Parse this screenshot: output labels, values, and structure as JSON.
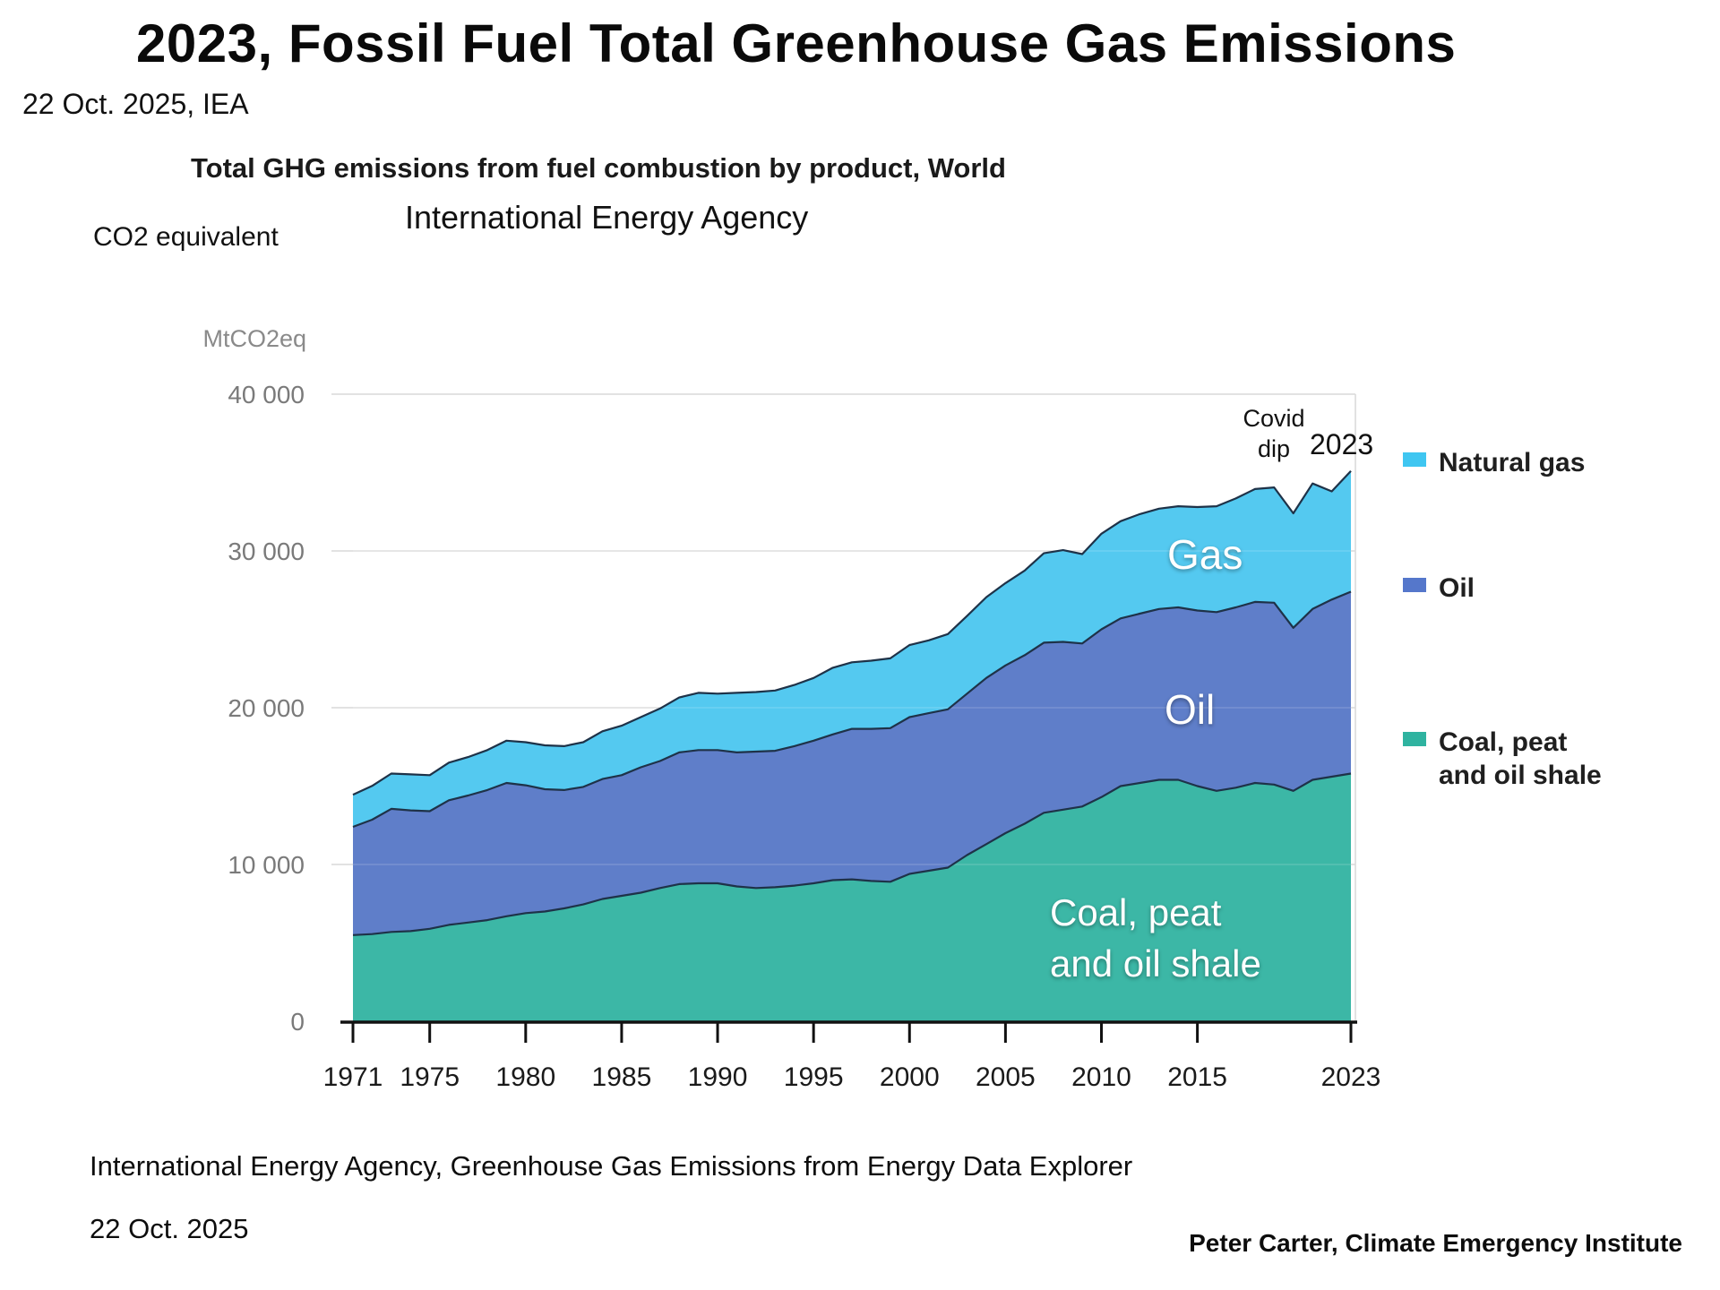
{
  "page": {
    "title": "2023, Fossil Fuel Total Greenhouse Gas Emissions",
    "date_line": "22 Oct. 2025, IEA",
    "footer_source": "International Energy Agency, Greenhouse Gas Emissions from Energy Data Explorer",
    "footer_date": "22 Oct. 2025",
    "credit": "Peter Carter, Climate Emergency Institute"
  },
  "chart": {
    "title": "Total GHG emissions from fuel combustion by product, World",
    "agency": "International Energy Agency",
    "unit_label": "CO2 equivalent",
    "axis_unit": "MtCO2eq",
    "area_labels": {
      "gas": "Gas",
      "oil": "Oil",
      "coal_line1": "Coal, peat",
      "coal_line2": "and oil shale"
    },
    "annotations": {
      "covid_line1": "Covid",
      "covid_line2": "dip",
      "end_year": "2023"
    },
    "legend": [
      {
        "label": "Natural gas",
        "label_line2": "",
        "color": "#3fc6f1"
      },
      {
        "label": "Oil",
        "label_line2": "",
        "color": "#5577cb"
      },
      {
        "label": "Coal, peat",
        "label_line2": "and oil shale",
        "color": "#2fb3a0"
      }
    ],
    "colors": {
      "gas_area": "#54c9f0",
      "oil_area": "#5f7ec9",
      "coal_area": "#3cb7a6",
      "edge_stroke": "#1e3248",
      "gridline": "#d9d9d9",
      "axis": "#111111",
      "y_tick_text": "#7a7a7a",
      "x_tick_text": "#1a1a1a"
    }
  },
  "chart_data": {
    "type": "area",
    "stacked": true,
    "title": "Total GHG emissions from fuel combustion by product, World",
    "ylabel": "MtCO2eq",
    "ylim": [
      0,
      40000
    ],
    "grid": true,
    "legend_position": "right",
    "x": [
      1971,
      1972,
      1973,
      1974,
      1975,
      1976,
      1977,
      1978,
      1979,
      1980,
      1981,
      1982,
      1983,
      1984,
      1985,
      1986,
      1987,
      1988,
      1989,
      1990,
      1991,
      1992,
      1993,
      1994,
      1995,
      1996,
      1997,
      1998,
      1999,
      2000,
      2001,
      2002,
      2003,
      2004,
      2005,
      2006,
      2007,
      2008,
      2009,
      2010,
      2011,
      2012,
      2013,
      2014,
      2015,
      2016,
      2017,
      2018,
      2019,
      2020,
      2021,
      2022,
      2023
    ],
    "series": [
      {
        "name": "Coal, peat and oil shale",
        "values": [
          5500,
          5560,
          5700,
          5750,
          5900,
          6150,
          6300,
          6450,
          6700,
          6900,
          7000,
          7200,
          7450,
          7800,
          8000,
          8200,
          8500,
          8750,
          8800,
          8800,
          8600,
          8500,
          8550,
          8650,
          8800,
          9000,
          9050,
          8950,
          8900,
          9400,
          9600,
          9800,
          10600,
          11300,
          12000,
          12600,
          13300,
          13500,
          13700,
          14300,
          15000,
          15200,
          15400,
          15400,
          15000,
          14700,
          14900,
          15200,
          15100,
          14700,
          15400,
          15600,
          15800
        ]
      },
      {
        "name": "Oil",
        "values": [
          6900,
          7300,
          7850,
          7700,
          7500,
          7950,
          8100,
          8300,
          8500,
          8150,
          7800,
          7550,
          7500,
          7650,
          7700,
          8000,
          8100,
          8400,
          8500,
          8500,
          8550,
          8700,
          8700,
          8900,
          9100,
          9300,
          9600,
          9700,
          9800,
          10000,
          10050,
          10100,
          10300,
          10600,
          10700,
          10750,
          10850,
          10700,
          10400,
          10700,
          10700,
          10800,
          10900,
          11000,
          11200,
          11400,
          11500,
          11550,
          11600,
          10400,
          10900,
          11300,
          11600
        ]
      },
      {
        "name": "Natural gas",
        "values": [
          2050,
          2150,
          2250,
          2300,
          2300,
          2400,
          2450,
          2550,
          2700,
          2750,
          2800,
          2800,
          2850,
          3050,
          3150,
          3200,
          3350,
          3500,
          3650,
          3600,
          3800,
          3800,
          3850,
          3900,
          4000,
          4250,
          4250,
          4350,
          4450,
          4600,
          4650,
          4800,
          4950,
          5150,
          5250,
          5400,
          5700,
          5850,
          5700,
          6100,
          6200,
          6350,
          6400,
          6450,
          6600,
          6750,
          6950,
          7200,
          7350,
          7300,
          8000,
          6900,
          7700
        ]
      }
    ],
    "yticks": [
      0,
      10000,
      20000,
      30000,
      40000
    ],
    "ytick_labels": [
      "0",
      "10 000",
      "20 000",
      "30 000",
      "40 000"
    ],
    "xticks": [
      1971,
      1975,
      1980,
      1985,
      1990,
      1995,
      2000,
      2005,
      2010,
      2015,
      2023
    ],
    "xtick_labels": [
      "1971",
      "1975",
      "1980",
      "1985",
      "1990",
      "1995",
      "2000",
      "2005",
      "2010",
      "2015",
      "2023"
    ],
    "annotations": [
      "Covid dip at 2020",
      "2023 marks the end point / record high"
    ]
  }
}
